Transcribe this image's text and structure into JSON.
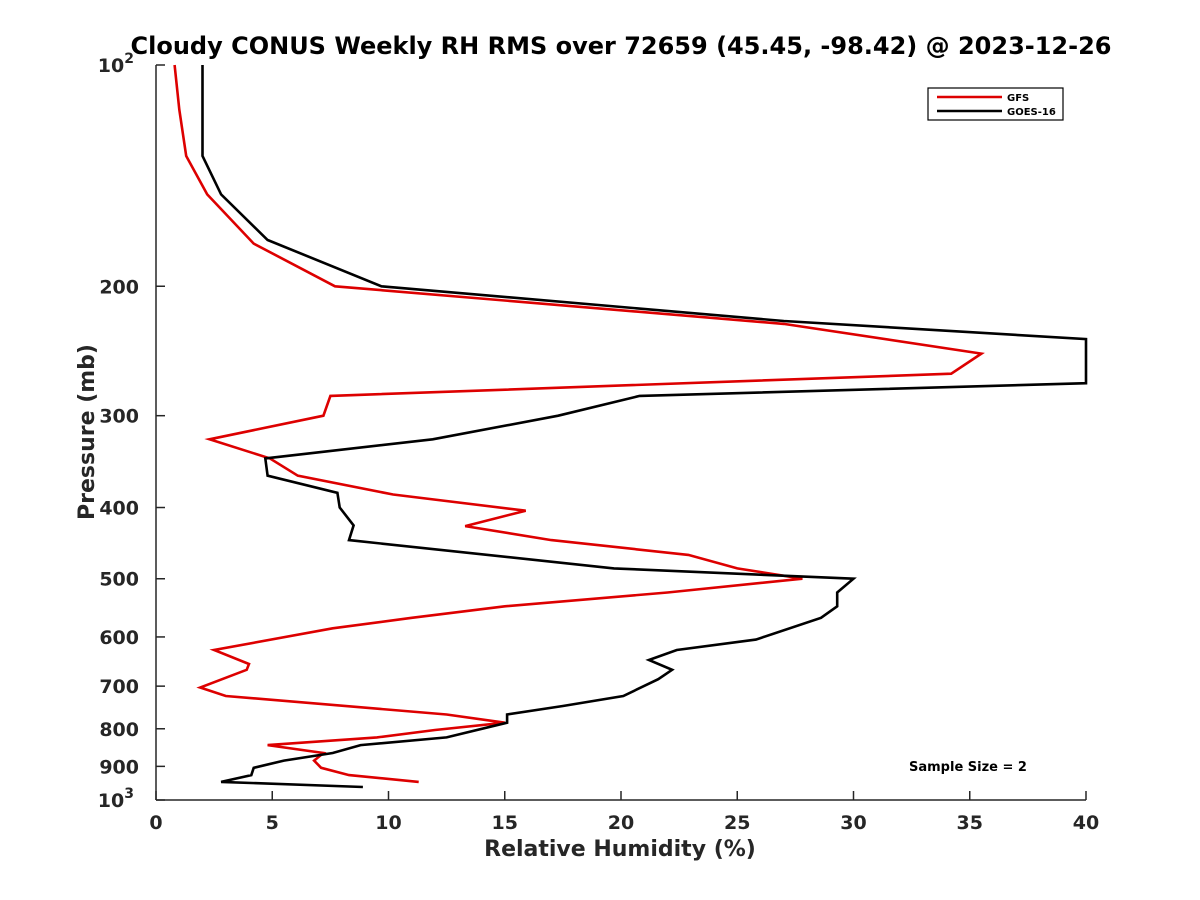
{
  "chart_data": {
    "type": "line",
    "title": "Cloudy CONUS Weekly RH RMS over 72659 (45.45, -98.42) @ 2023-12-26",
    "xlabel": "Relative Humidity (%)",
    "ylabel": "Pressure (mb)",
    "xlim": [
      0,
      40
    ],
    "ylim": [
      100,
      1000
    ],
    "yscale": "log",
    "y_reversed": true,
    "grid": false,
    "legend_position": "top-right",
    "x_ticks": [
      "0",
      "5",
      "10",
      "15",
      "20",
      "25",
      "30",
      "35",
      "40"
    ],
    "y_ticks": [
      {
        "value": 100,
        "label": "10",
        "sup": "2"
      },
      {
        "value": 200,
        "label": "200",
        "sup": ""
      },
      {
        "value": 300,
        "label": "300",
        "sup": ""
      },
      {
        "value": 400,
        "label": "400",
        "sup": ""
      },
      {
        "value": 500,
        "label": "500",
        "sup": ""
      },
      {
        "value": 600,
        "label": "600",
        "sup": ""
      },
      {
        "value": 700,
        "label": "700",
        "sup": ""
      },
      {
        "value": 800,
        "label": "800",
        "sup": ""
      },
      {
        "value": 900,
        "label": "900",
        "sup": ""
      },
      {
        "value": 1000,
        "label": "10",
        "sup": "3"
      }
    ],
    "series": [
      {
        "name": "GFS",
        "color": "#dd0000",
        "points": [
          [
            0.8,
            100
          ],
          [
            1.0,
            115
          ],
          [
            1.3,
            133
          ],
          [
            2.2,
            150
          ],
          [
            4.2,
            175
          ],
          [
            7.7,
            200
          ],
          [
            27.0,
            225
          ],
          [
            35.5,
            247
          ],
          [
            34.2,
            263
          ],
          [
            7.5,
            282
          ],
          [
            7.2,
            300
          ],
          [
            2.3,
            323
          ],
          [
            4.9,
            343
          ],
          [
            6.1,
            362
          ],
          [
            10.2,
            384
          ],
          [
            15.9,
            404
          ],
          [
            13.3,
            424
          ],
          [
            17.0,
            443
          ],
          [
            22.9,
            464
          ],
          [
            25.0,
            484
          ],
          [
            27.8,
            500
          ],
          [
            22.0,
            522
          ],
          [
            15.0,
            545
          ],
          [
            11.0,
            565
          ],
          [
            7.6,
            584
          ],
          [
            2.5,
            625
          ],
          [
            4.0,
            653
          ],
          [
            3.9,
            665
          ],
          [
            1.9,
            703
          ],
          [
            3.0,
            722
          ],
          [
            12.5,
            765
          ],
          [
            15.0,
            785
          ],
          [
            12.0,
            803
          ],
          [
            9.5,
            822
          ],
          [
            4.8,
            842
          ],
          [
            7.2,
            863
          ],
          [
            6.8,
            884
          ],
          [
            7.1,
            904
          ],
          [
            8.3,
            925
          ],
          [
            11.3,
            945
          ]
        ]
      },
      {
        "name": "GOES-16",
        "color": "#000000",
        "points": [
          [
            2.0,
            100
          ],
          [
            2.0,
            118
          ],
          [
            2.0,
            133
          ],
          [
            2.8,
            150
          ],
          [
            4.8,
            173
          ],
          [
            9.7,
            200
          ],
          [
            27.0,
            223
          ],
          [
            40.0,
            236
          ],
          [
            40.0,
            271
          ],
          [
            20.8,
            282
          ],
          [
            17.3,
            300
          ],
          [
            11.9,
            323
          ],
          [
            4.7,
            343
          ],
          [
            4.8,
            362
          ],
          [
            7.8,
            382
          ],
          [
            7.9,
            400
          ],
          [
            8.5,
            423
          ],
          [
            8.3,
            443
          ],
          [
            19.7,
            484
          ],
          [
            30.0,
            500
          ],
          [
            29.3,
            522
          ],
          [
            29.3,
            545
          ],
          [
            28.6,
            565
          ],
          [
            25.8,
            605
          ],
          [
            22.4,
            625
          ],
          [
            21.2,
            645
          ],
          [
            22.2,
            665
          ],
          [
            21.6,
            685
          ],
          [
            20.1,
            722
          ],
          [
            17.5,
            745
          ],
          [
            15.1,
            765
          ],
          [
            15.1,
            785
          ],
          [
            12.5,
            822
          ],
          [
            8.8,
            842
          ],
          [
            7.6,
            863
          ],
          [
            5.5,
            884
          ],
          [
            4.2,
            904
          ],
          [
            4.1,
            925
          ],
          [
            2.8,
            945
          ],
          [
            8.9,
            960
          ]
        ]
      }
    ],
    "annotations": [
      "Sample Size = 2"
    ]
  }
}
